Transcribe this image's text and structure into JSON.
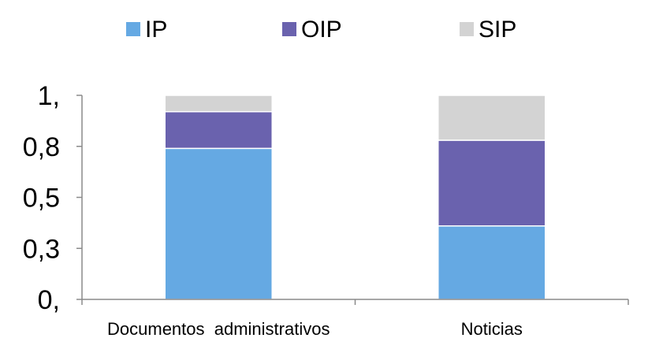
{
  "chart_data": {
    "type": "bar",
    "stacked": true,
    "categories": [
      "Documentos  administrativos",
      "Noticias"
    ],
    "series": [
      {
        "name": "IP",
        "color": "#65A9E3",
        "values": [
          0.74,
          0.36
        ]
      },
      {
        "name": "OIP",
        "color": "#6A62AE",
        "values": [
          0.18,
          0.42
        ]
      },
      {
        "name": "SIP",
        "color": "#D3D3D3",
        "values": [
          0.08,
          0.22
        ]
      }
    ],
    "yticks": [
      {
        "value": 0,
        "label": "0,"
      },
      {
        "value": 0.25,
        "label": "0,3"
      },
      {
        "value": 0.5,
        "label": "0,5"
      },
      {
        "value": 0.75,
        "label": "0,8"
      },
      {
        "value": 1,
        "label": "1,"
      }
    ],
    "ylim": [
      0,
      1
    ],
    "legend_position": "top",
    "grid": false,
    "title": "",
    "xlabel": "",
    "ylabel": ""
  }
}
